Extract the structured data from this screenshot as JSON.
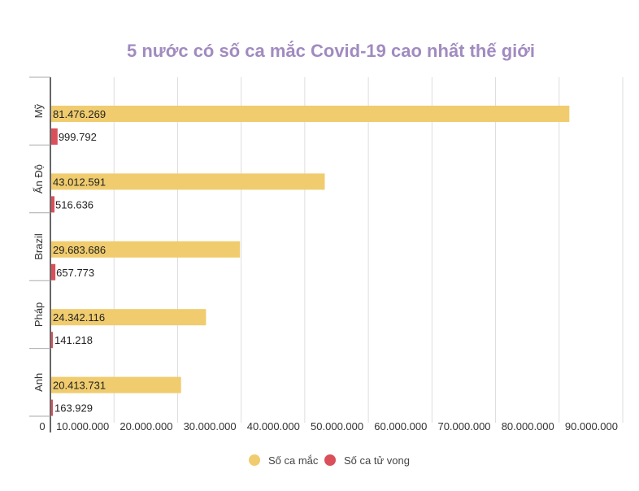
{
  "chart_data": {
    "type": "bar",
    "orientation": "horizontal",
    "title": "5 nước có số ca mắc Covid-19 cao nhất thế giới",
    "categories": [
      "Mỹ",
      "Ấn Độ",
      "Brazil",
      "Pháp",
      "Anh"
    ],
    "series": [
      {
        "name": "Số ca mắc",
        "color": "#f0cc6e",
        "values": [
          81476269,
          43012591,
          29683686,
          24342116,
          20413731
        ],
        "labels": [
          "81.476.269",
          "43.012.591",
          "29.683.686",
          "24.342.116",
          "20.413.731"
        ]
      },
      {
        "name": "Số ca tử vong",
        "color": "#d9505a",
        "values": [
          999792,
          516636,
          657773,
          141218,
          163929
        ],
        "labels": [
          "999.792",
          "516.636",
          "657.773",
          "141.218",
          "163.929"
        ]
      }
    ],
    "xlim": [
      0,
      90000000
    ],
    "xticks": [
      0,
      10000000,
      20000000,
      30000000,
      40000000,
      50000000,
      60000000,
      70000000,
      80000000,
      90000000
    ],
    "xtick_labels": [
      "0",
      "10.000.000",
      "20.000.000",
      "30.000.000",
      "40.000.000",
      "50.000.000",
      "60.000.000",
      "70.000.000",
      "80.000.000",
      "90.000.000"
    ],
    "grid": true,
    "legend_position": "bottom-center",
    "title_color": "#a18bc0",
    "axis_color": "#333333",
    "grid_color": "#dddddd"
  }
}
